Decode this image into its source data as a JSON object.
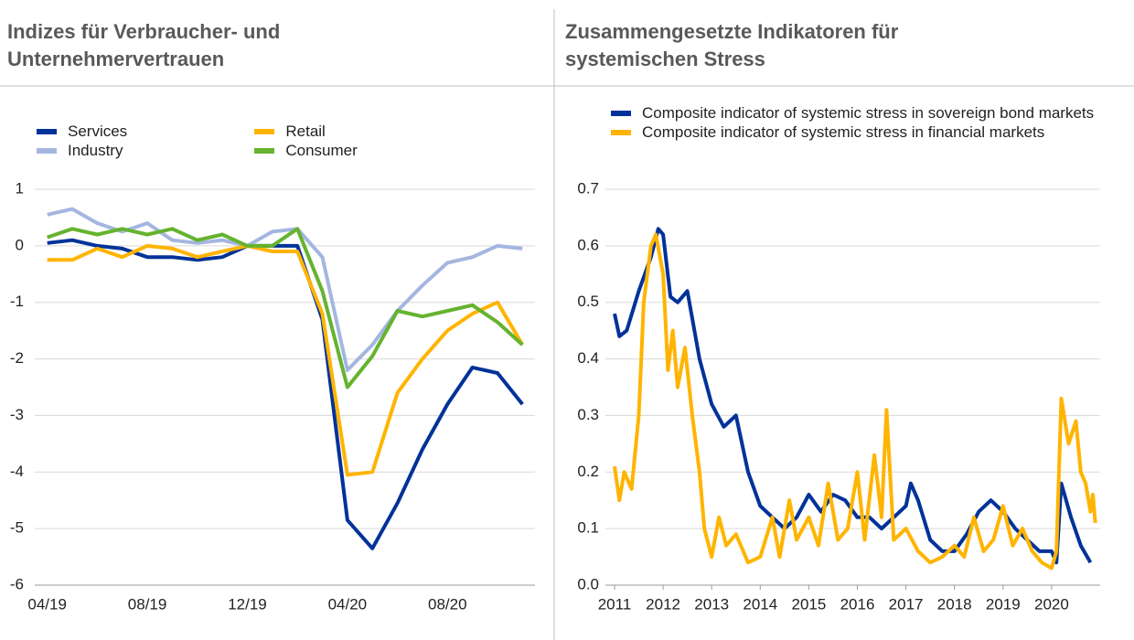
{
  "chart_data": [
    {
      "type": "line",
      "title": "Indizes für Verbraucher- und Unternehmervertrauen",
      "categories": [
        "04/19",
        null,
        null,
        null,
        "08/19",
        null,
        null,
        null,
        "12/19",
        null,
        null,
        null,
        "04/20",
        null,
        null,
        null,
        "08/20",
        null,
        null,
        null
      ],
      "series": [
        {
          "name": "Services",
          "color": "#003299",
          "values": [
            0.05,
            0.1,
            0,
            -0.05,
            -0.2,
            -0.2,
            -0.25,
            -0.2,
            0,
            0,
            0,
            -1.3,
            -4.85,
            -5.35,
            -4.55,
            -3.6,
            -2.8,
            -2.15,
            -2.25,
            -2.8
          ]
        },
        {
          "name": "Industry",
          "color": "#a4b6e0",
          "values": [
            0.55,
            0.65,
            0.4,
            0.25,
            0.4,
            0.1,
            0.05,
            0.1,
            0,
            0.25,
            0.3,
            -0.2,
            -2.2,
            -1.75,
            -1.15,
            -0.7,
            -0.3,
            -0.2,
            0,
            -0.05
          ]
        },
        {
          "name": "Retail",
          "color": "#ffb400",
          "values": [
            -0.25,
            -0.25,
            -0.05,
            -0.2,
            0,
            -0.05,
            -0.2,
            -0.1,
            0,
            -0.1,
            -0.1,
            -1.2,
            -4.05,
            -4.0,
            -2.6,
            -2.0,
            -1.5,
            -1.2,
            -1.0,
            -1.75
          ]
        },
        {
          "name": "Consumer",
          "color": "#65b32e",
          "values": [
            0.15,
            0.3,
            0.2,
            0.3,
            0.2,
            0.3,
            0.1,
            0.2,
            0,
            0,
            0.3,
            -0.8,
            -2.5,
            -1.95,
            -1.15,
            -1.25,
            -1.15,
            -1.05,
            -1.35,
            -1.75
          ]
        }
      ],
      "ylim": [
        -6,
        1
      ],
      "yticks": [
        -6,
        -5,
        -4,
        -3,
        -2,
        -1,
        0,
        1
      ],
      "grid": true
    },
    {
      "type": "line",
      "title": "Zusammengesetzte Indikatoren für systemischen Stress",
      "series": [
        {
          "name": "Composite indicator of systemic stress in sovereign bond markets",
          "color": "#003299",
          "x": [
            2011.0,
            2011.1,
            2011.25,
            2011.5,
            2011.75,
            2011.9,
            2012.0,
            2012.15,
            2012.3,
            2012.5,
            2012.75,
            2013.0,
            2013.25,
            2013.5,
            2013.75,
            2014.0,
            2014.25,
            2014.5,
            2014.75,
            2015.0,
            2015.25,
            2015.5,
            2015.75,
            2016.0,
            2016.25,
            2016.5,
            2016.75,
            2017.0,
            2017.1,
            2017.25,
            2017.5,
            2017.75,
            2018.0,
            2018.25,
            2018.5,
            2018.75,
            2019.0,
            2019.25,
            2019.5,
            2019.75,
            2020.0,
            2020.1,
            2020.2,
            2020.4,
            2020.6,
            2020.8
          ],
          "values": [
            0.48,
            0.44,
            0.45,
            0.52,
            0.58,
            0.63,
            0.62,
            0.51,
            0.5,
            0.52,
            0.4,
            0.32,
            0.28,
            0.3,
            0.2,
            0.14,
            0.12,
            0.1,
            0.12,
            0.16,
            0.13,
            0.16,
            0.15,
            0.12,
            0.12,
            0.1,
            0.12,
            0.14,
            0.18,
            0.15,
            0.08,
            0.06,
            0.06,
            0.09,
            0.13,
            0.15,
            0.13,
            0.1,
            0.08,
            0.06,
            0.06,
            0.04,
            0.18,
            0.12,
            0.07,
            0.04
          ]
        },
        {
          "name": "Composite indicator of systemic stress in financial markets",
          "color": "#ffb400",
          "x": [
            2011.0,
            2011.1,
            2011.2,
            2011.35,
            2011.5,
            2011.6,
            2011.75,
            2011.85,
            2012.0,
            2012.1,
            2012.2,
            2012.3,
            2012.45,
            2012.6,
            2012.75,
            2012.85,
            2013.0,
            2013.15,
            2013.3,
            2013.5,
            2013.75,
            2014.0,
            2014.25,
            2014.4,
            2014.6,
            2014.75,
            2015.0,
            2015.2,
            2015.4,
            2015.6,
            2015.8,
            2016.0,
            2016.15,
            2016.35,
            2016.5,
            2016.6,
            2016.75,
            2017.0,
            2017.25,
            2017.5,
            2017.75,
            2018.0,
            2018.2,
            2018.4,
            2018.6,
            2018.8,
            2019.0,
            2019.2,
            2019.4,
            2019.6,
            2019.8,
            2020.0,
            2020.1,
            2020.2,
            2020.35,
            2020.5,
            2020.6,
            2020.7,
            2020.8,
            2020.85,
            2020.9
          ],
          "values": [
            0.21,
            0.15,
            0.2,
            0.17,
            0.3,
            0.5,
            0.6,
            0.62,
            0.55,
            0.38,
            0.45,
            0.35,
            0.42,
            0.3,
            0.2,
            0.1,
            0.05,
            0.12,
            0.07,
            0.09,
            0.04,
            0.05,
            0.12,
            0.05,
            0.15,
            0.08,
            0.12,
            0.07,
            0.18,
            0.08,
            0.1,
            0.2,
            0.08,
            0.23,
            0.12,
            0.31,
            0.08,
            0.1,
            0.06,
            0.04,
            0.05,
            0.07,
            0.05,
            0.12,
            0.06,
            0.08,
            0.14,
            0.07,
            0.1,
            0.06,
            0.04,
            0.03,
            0.06,
            0.33,
            0.25,
            0.29,
            0.2,
            0.18,
            0.13,
            0.16,
            0.11
          ]
        }
      ],
      "xlim": [
        2011,
        2021
      ],
      "xticks": [
        2011,
        2012,
        2013,
        2014,
        2015,
        2016,
        2017,
        2018,
        2019,
        2020
      ],
      "ylim": [
        0,
        0.7
      ],
      "yticks": [
        {
          "value": 0,
          "label": "0.0"
        },
        0.1,
        0.2,
        0.3,
        0.4,
        0.5,
        0.6,
        0.7
      ],
      "grid": true
    }
  ]
}
